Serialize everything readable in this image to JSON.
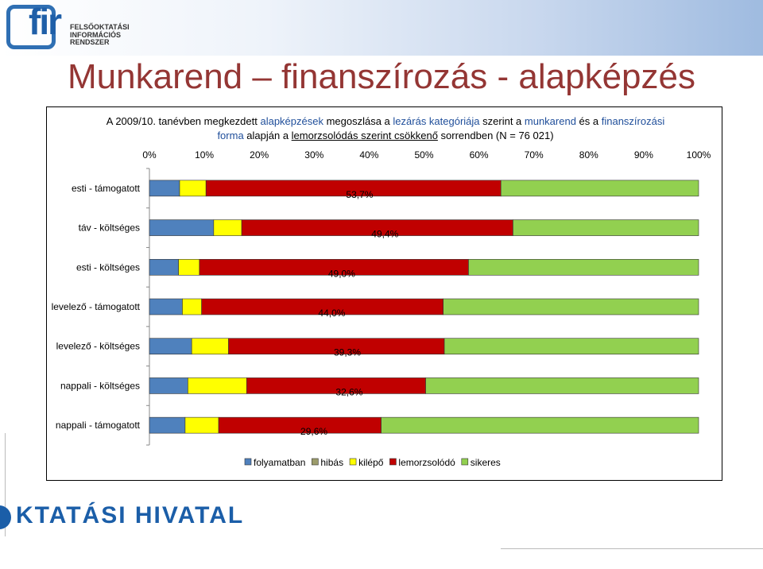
{
  "header": {
    "logo_lines": [
      "FELSŐOKTATÁSI",
      "INFORMÁCIÓS",
      "RENDSZER"
    ],
    "logo_mark": "fir"
  },
  "title": "Munkarend – finanszírozás - alapképzés",
  "subtitle": {
    "p1": "A 2009/10. tanévben megkezdett ",
    "p2": "alapképzések",
    "p3": " megoszlása a ",
    "p4": "lezárás kategóriája",
    "p5": " szerint a ",
    "p6": "munkarend",
    "p7": " és a ",
    "p8": "finanszírozási",
    "p9": "forma",
    "p10": " alapján a ",
    "p11": "lemorzsolódás szerint csökkenő",
    "p12": " sorrendben (N =  76 021)"
  },
  "footer_logo": "KTATÁSI HIVATAL",
  "chart_data": {
    "type": "bar",
    "orientation": "horizontal",
    "stacked": "percent",
    "x_ticks": [
      "0%",
      "10%",
      "20%",
      "30%",
      "40%",
      "50%",
      "60%",
      "70%",
      "80%",
      "90%",
      "100%"
    ],
    "xlim": [
      0,
      100
    ],
    "legend_position": "bottom",
    "categories": [
      "esti - támogatott",
      "táv - költséges",
      "esti - költséges",
      "levelező - támogatott",
      "levelező - költséges",
      "nappali - költséges",
      "nappali - támogatott"
    ],
    "series": [
      {
        "name": "folyamatban",
        "color": "#4f81bd",
        "values": [
          5.5,
          11.7,
          5.3,
          6.0,
          7.7,
          7.0,
          6.5
        ]
      },
      {
        "name": "hibás",
        "color": "#9c9c6b",
        "values": [
          0,
          0,
          0,
          0,
          0,
          0,
          0
        ]
      },
      {
        "name": "kilépő",
        "color": "#ffff00",
        "values": [
          4.8,
          5.1,
          3.8,
          3.5,
          6.7,
          10.7,
          6.1
        ]
      },
      {
        "name": "lemorzsolódó",
        "color": "#c00000",
        "values": [
          53.7,
          49.4,
          49.0,
          44.0,
          39.3,
          32.6,
          29.6
        ]
      },
      {
        "name": "sikeres",
        "color": "#92d050",
        "values": [
          36.0,
          33.8,
          41.9,
          46.5,
          46.3,
          49.7,
          57.8
        ]
      }
    ],
    "data_labels": [
      "53,7%",
      "49,4%",
      "49,0%",
      "44,0%",
      "39,3%",
      "32,6%",
      "29,6%"
    ]
  }
}
